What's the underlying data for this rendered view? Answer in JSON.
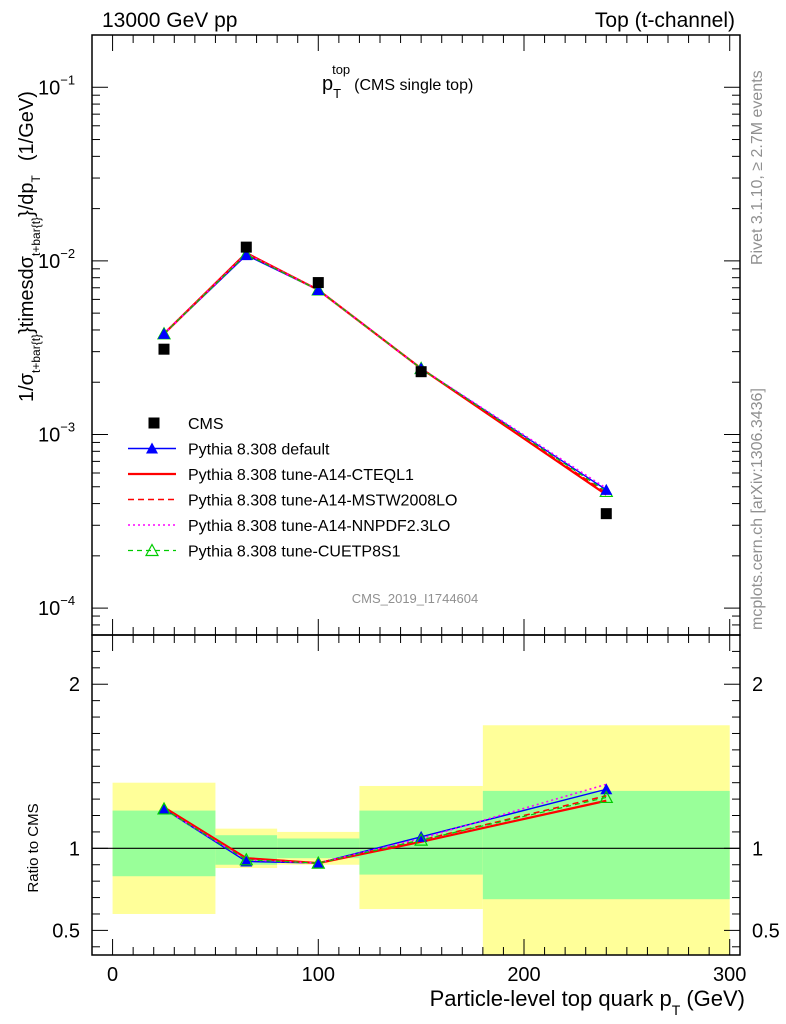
{
  "header": {
    "left": "13000 GeV pp",
    "right": "Top (t-channel)"
  },
  "side_text": {
    "rivet": "Rivet 3.1.10, ≥ 2.7M events",
    "mcplots": "mcplots.cern.ch [arXiv:1306.3436]"
  },
  "chart_data": [
    {
      "type": "line",
      "title_main": "p",
      "title_sub": "T",
      "title_sup": "top",
      "title_note": "(CMS single top)",
      "watermark": "CMS_2019_I1744604",
      "ylabel_parts": [
        "1/σ",
        "t+bar{t}",
        "}timesdσ",
        "t+bar{t}",
        "}/dp",
        "T",
        "(1/GeV)"
      ],
      "yscale": "log",
      "xlim": [
        -10,
        305
      ],
      "ylim": [
        7e-05,
        0.2
      ],
      "ytick_labels": [
        {
          "base": "10",
          "exp": "−4",
          "value": 0.0001
        },
        {
          "base": "10",
          "exp": "−3",
          "value": 0.001
        },
        {
          "base": "10",
          "exp": "−2",
          "value": 0.01
        },
        {
          "base": "10",
          "exp": "−1",
          "value": 0.1
        }
      ],
      "x": [
        25,
        65,
        100,
        150,
        240
      ],
      "series": [
        {
          "name": "CMS",
          "values": [
            0.0031,
            0.012,
            0.0075,
            0.0023,
            0.00035
          ],
          "color": "#000000",
          "style": "square"
        },
        {
          "name": "Pythia 8.308 default",
          "values": [
            0.0038,
            0.0108,
            0.0068,
            0.0024,
            0.00048
          ],
          "color": "#0000ff",
          "style": "solid-triangle"
        },
        {
          "name": "Pythia 8.308 tune-A14-CTEQL1",
          "values": [
            0.0038,
            0.0111,
            0.0068,
            0.0024,
            0.00045
          ],
          "color": "#ff0000",
          "style": "solid-thick"
        },
        {
          "name": "Pythia 8.308 tune-A14-MSTW2008LO",
          "values": [
            0.0038,
            0.011,
            0.0068,
            0.0024,
            0.00046
          ],
          "color": "#ff0000",
          "style": "dashed"
        },
        {
          "name": "Pythia 8.308 tune-A14-NNPDF2.3LO",
          "values": [
            0.0038,
            0.011,
            0.0068,
            0.0024,
            0.00049
          ],
          "color": "#ff00ff",
          "style": "dotted"
        },
        {
          "name": "Pythia 8.308 tune-CUETP8S1",
          "values": [
            0.0038,
            0.0109,
            0.0068,
            0.0024,
            0.00047
          ],
          "color": "#00cc00",
          "style": "dashed-open-triangle"
        }
      ],
      "legend_position": "lower-left"
    },
    {
      "type": "line",
      "ylabel": "Ratio to CMS",
      "xlabel_main": "Particle-level top quark p",
      "xlabel_sub": "T",
      "xlabel_unit": "(GeV)",
      "xlim": [
        -10,
        305
      ],
      "ylim": [
        0.35,
        2.3
      ],
      "xticks": [
        0,
        100,
        200,
        300
      ],
      "yticks": [
        0.5,
        1,
        2
      ],
      "ytick_labels": [
        "0.5",
        "1",
        "2"
      ],
      "bands": [
        {
          "x": [
            0,
            50
          ],
          "green": [
            0.83,
            1.23
          ],
          "yellow": [
            0.6,
            1.4
          ]
        },
        {
          "x": [
            50,
            80
          ],
          "green": [
            0.9,
            1.08
          ],
          "yellow": [
            0.88,
            1.12
          ]
        },
        {
          "x": [
            80,
            120
          ],
          "green": [
            0.94,
            1.06
          ],
          "yellow": [
            0.9,
            1.1
          ]
        },
        {
          "x": [
            120,
            180
          ],
          "green": [
            0.84,
            1.23
          ],
          "yellow": [
            0.63,
            1.38
          ]
        },
        {
          "x": [
            180,
            300
          ],
          "green": [
            0.69,
            1.35
          ],
          "yellow": [
            0.35,
            1.75
          ]
        }
      ],
      "x": [
        25,
        65,
        100,
        150,
        240
      ],
      "series": [
        {
          "name": "Pythia 8.308 default",
          "values": [
            1.24,
            0.92,
            0.91,
            1.07,
            1.36
          ],
          "color": "#0000ff",
          "style": "solid-triangle"
        },
        {
          "name": "Pythia 8.308 tune-A14-CTEQL1",
          "values": [
            1.25,
            0.94,
            0.91,
            1.04,
            1.29
          ],
          "color": "#ff0000",
          "style": "solid-thick"
        },
        {
          "name": "Pythia 8.308 tune-A14-MSTW2008LO",
          "values": [
            1.25,
            0.94,
            0.91,
            1.05,
            1.32
          ],
          "color": "#ff0000",
          "style": "dashed"
        },
        {
          "name": "Pythia 8.308 tune-A14-NNPDF2.3LO",
          "values": [
            1.24,
            0.93,
            0.91,
            1.06,
            1.39
          ],
          "color": "#ff00ff",
          "style": "dotted"
        },
        {
          "name": "Pythia 8.308 tune-CUETP8S1",
          "values": [
            1.24,
            0.93,
            0.91,
            1.05,
            1.31
          ],
          "color": "#00cc00",
          "style": "dashed-open-triangle"
        }
      ]
    }
  ]
}
